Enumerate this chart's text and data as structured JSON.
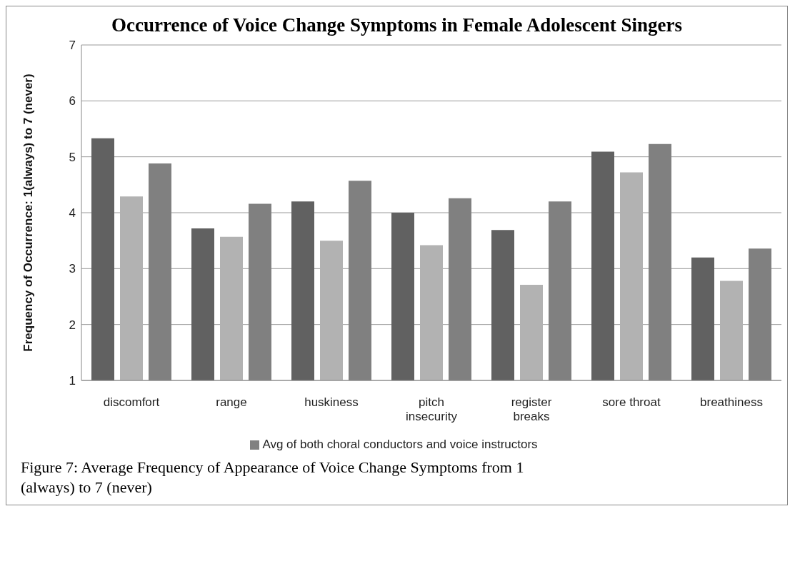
{
  "chart_data": {
    "type": "bar",
    "title": "Occurrence of Voice Change Symptoms in Female Adolescent Singers",
    "ylabel": "Frequency of Occurrence: 1(always) to 7 (never)",
    "categories": [
      "discomfort",
      "range",
      "huskiness",
      "pitch insecurity",
      "register breaks",
      "sore throat",
      "breathiness"
    ],
    "series": [
      {
        "color": "#616161",
        "values": [
          5.33,
          3.72,
          4.2,
          4.0,
          3.69,
          5.09,
          3.2
        ]
      },
      {
        "color": "#b2b2b2",
        "values": [
          4.29,
          3.57,
          3.5,
          3.42,
          2.71,
          4.72,
          2.78
        ]
      },
      {
        "name": "Avg of both choral conductors and voice instructors",
        "color": "#808080",
        "values": [
          4.88,
          4.16,
          4.57,
          4.26,
          4.2,
          5.23,
          3.36
        ]
      }
    ],
    "ylim": [
      1,
      7
    ],
    "yticks": [
      1,
      2,
      3,
      4,
      5,
      6,
      7
    ],
    "grid": "y",
    "legend": "bottom",
    "annotations": [
      "Figure 7:  Average Frequency of Appearance of Voice Change Symptoms from 1 (always) to 7 (never)"
    ]
  }
}
